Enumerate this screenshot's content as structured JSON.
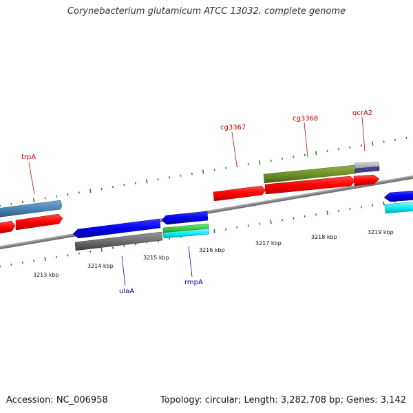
{
  "title": "Corynebacterium glutamicum ATCC 13032, complete genome",
  "footer": {
    "accession": "Accession: NC_006958",
    "summary": "Topology: circular; Length: 3,282,708 bp; Genes: 3,142"
  },
  "ticks": [
    {
      "label": "3213 kbp"
    },
    {
      "label": "3214 kbp"
    },
    {
      "label": "3215 kbp"
    },
    {
      "label": "3216 kbp"
    },
    {
      "label": "3217 kbp"
    },
    {
      "label": "3218 kbp"
    },
    {
      "label": "3219 kbp"
    }
  ],
  "gene_labels": [
    {
      "name": "trpA",
      "strand": "forward",
      "color": "#cc0000"
    },
    {
      "name": "cg3367",
      "strand": "forward",
      "color": "#cc0000"
    },
    {
      "name": "cg3368",
      "strand": "forward",
      "color": "#cc0000"
    },
    {
      "name": "qcrA2",
      "strand": "forward",
      "color": "#cc0000"
    },
    {
      "name": "ulaA",
      "strand": "reverse",
      "color": "#0000aa"
    },
    {
      "name": "rmpA",
      "strand": "reverse",
      "color": "#0000aa"
    }
  ],
  "colors": {
    "cds_forward": "#ff0000",
    "cds_reverse": "#0000ee",
    "backbone": "#888888",
    "tick_marks": "#228b22",
    "steelblue_feature": "#4682b4",
    "olive_feature": "#6b8e23",
    "gray_feature": "#666666",
    "silver_feature": "#aaaaaa",
    "purple_feature": "#483d8b",
    "green_feature": "#32cd32",
    "cyan_feature": "#00e5ee"
  }
}
